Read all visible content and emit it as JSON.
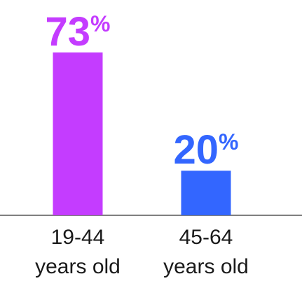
{
  "chart_data": {
    "type": "bar",
    "categories": [
      {
        "line1": "19-44",
        "line2": "years old"
      },
      {
        "line1": "45-64",
        "line2": "years old"
      }
    ],
    "values": [
      73,
      20
    ],
    "unit": "%",
    "ylim": [
      0,
      100
    ],
    "colors": [
      "#c43cff",
      "#3366ff"
    ],
    "axis_color": "#555555",
    "grid": false,
    "legend": "none"
  }
}
